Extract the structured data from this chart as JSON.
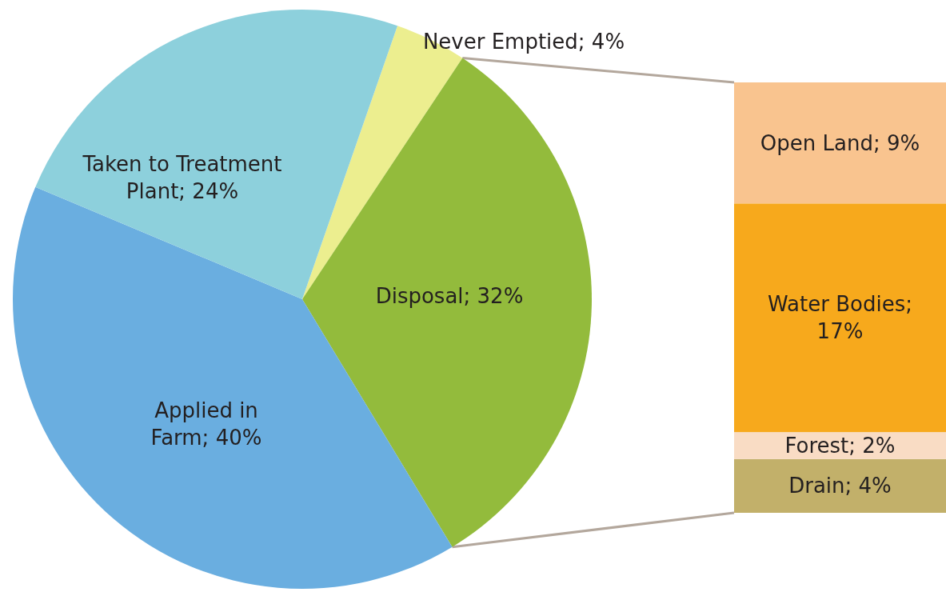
{
  "chart_data": [
    {
      "type": "pie",
      "categories": [
        "Never Emptied",
        "Disposal",
        "Applied in Farm",
        "Taken to Treatment Plant"
      ],
      "values": [
        4,
        32,
        40,
        24
      ],
      "colors": [
        "#ecee8f",
        "#93bb3c",
        "#6aaee0",
        "#8dd0dc"
      ],
      "value_labels": [
        "4%",
        "32%",
        "40%",
        "24%"
      ]
    },
    {
      "type": "bar",
      "stacked": true,
      "categories": [
        null
      ],
      "series": [
        {
          "name": "Drain;",
          "color": "#c2b06a",
          "values": [
            4
          ],
          "value_labels": [
            "4%"
          ]
        },
        {
          "name": "Forest;",
          "color": "#f9dcc4",
          "values": [
            2
          ],
          "value_labels": [
            "2%"
          ]
        },
        {
          "name": "Water Bodies;",
          "color": "#f7a91c",
          "values": [
            17
          ],
          "value_labels": [
            "17%"
          ]
        },
        {
          "name": "Open Land;",
          "color": "#f9c48f",
          "values": [
            9
          ],
          "value_labels": [
            "9%"
          ]
        }
      ]
    }
  ]
}
